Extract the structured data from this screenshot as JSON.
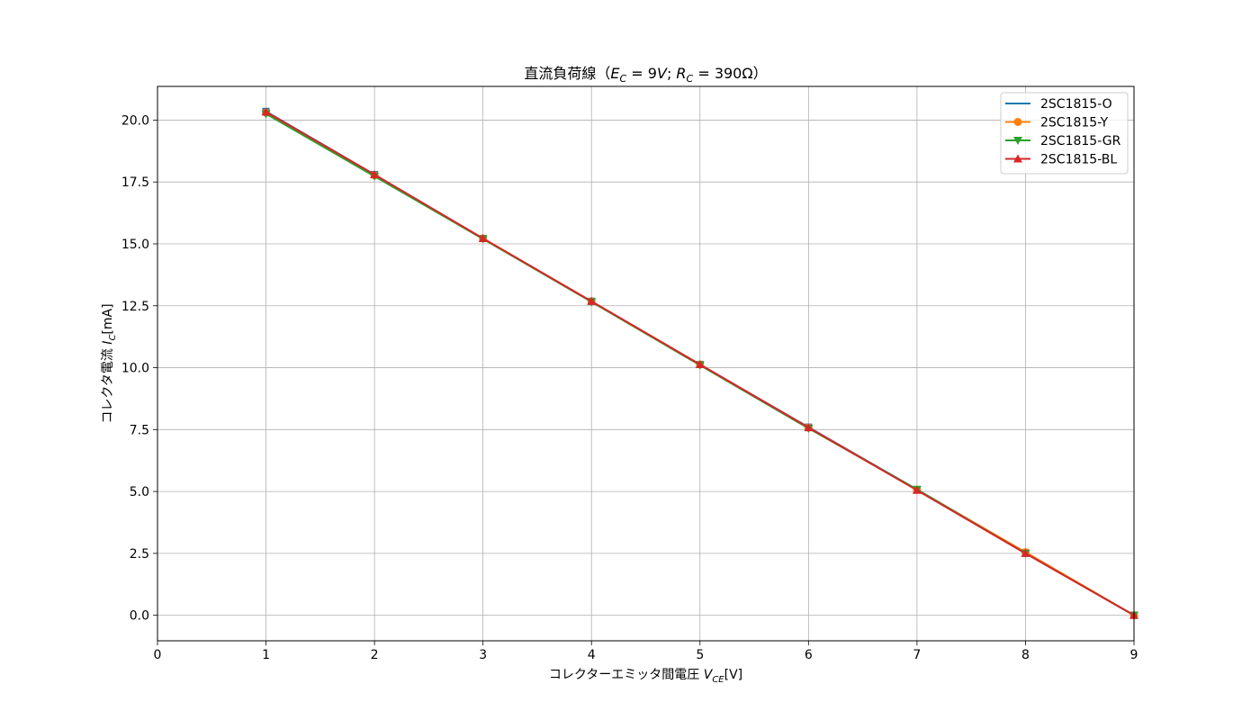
{
  "chart_data": {
    "type": "line",
    "title": "直流負荷線（E_C = 9V; R_C = 390Ω）",
    "title_parts": {
      "prefix": "直流負荷線（",
      "ec_sym": "E",
      "ec_sub": "C",
      "ec_rest": " = 9",
      "ec_unit": "V",
      "sep": "; ",
      "rc_sym": "R",
      "rc_sub": "C",
      "rc_rest": " = 390Ω",
      "suffix": "）"
    },
    "xlabel": "コレクターエミッタ間電圧 V_CE[V]",
    "xlabel_parts": {
      "prefix": "コレクターエミッタ間電圧 ",
      "sym": "V",
      "sub": "CE",
      "suffix": "[V]"
    },
    "ylabel": "コレクタ電流 I_C[mA]",
    "ylabel_parts": {
      "prefix": "コレクタ電流 ",
      "sym": "I",
      "sub": "C",
      "suffix": "[mA]"
    },
    "xlim": [
      0,
      9
    ],
    "ylim": [
      -1.03,
      21.36
    ],
    "xticks": [
      0,
      1,
      2,
      3,
      4,
      5,
      6,
      7,
      8,
      9
    ],
    "xtick_labels": [
      "0",
      "1",
      "2",
      "3",
      "4",
      "5",
      "6",
      "7",
      "8",
      "9"
    ],
    "yticks": [
      0,
      2.5,
      5,
      7.5,
      10,
      12.5,
      15,
      17.5,
      20
    ],
    "ytick_labels": [
      "0.0",
      "2.5",
      "5.0",
      "7.5",
      "10.0",
      "12.5",
      "15.0",
      "17.5",
      "20.0"
    ],
    "grid": true,
    "legend_position": "top-right",
    "x": [
      1,
      2,
      3,
      4,
      5,
      6,
      7,
      8,
      9
    ],
    "series": [
      {
        "name": "2SC1815-O",
        "color": "#1f77b4",
        "marker": "square",
        "values": [
          20.35,
          17.8,
          15.22,
          12.68,
          10.13,
          7.6,
          5.08,
          2.53,
          0.0
        ]
      },
      {
        "name": "2SC1815-Y",
        "color": "#ff7f0e",
        "marker": "circle",
        "values": [
          20.3,
          17.77,
          15.22,
          12.68,
          10.13,
          7.58,
          5.07,
          2.55,
          0.0
        ]
      },
      {
        "name": "2SC1815-GR",
        "color": "#2ca02c",
        "marker": "triangle-down",
        "values": [
          20.25,
          17.73,
          15.2,
          12.66,
          10.1,
          7.55,
          5.08,
          2.5,
          0.0
        ]
      },
      {
        "name": "2SC1815-BL",
        "color": "#d62728",
        "marker": "triangle-up",
        "values": [
          20.33,
          17.8,
          15.22,
          12.68,
          10.13,
          7.58,
          5.05,
          2.5,
          0.0
        ]
      }
    ]
  }
}
